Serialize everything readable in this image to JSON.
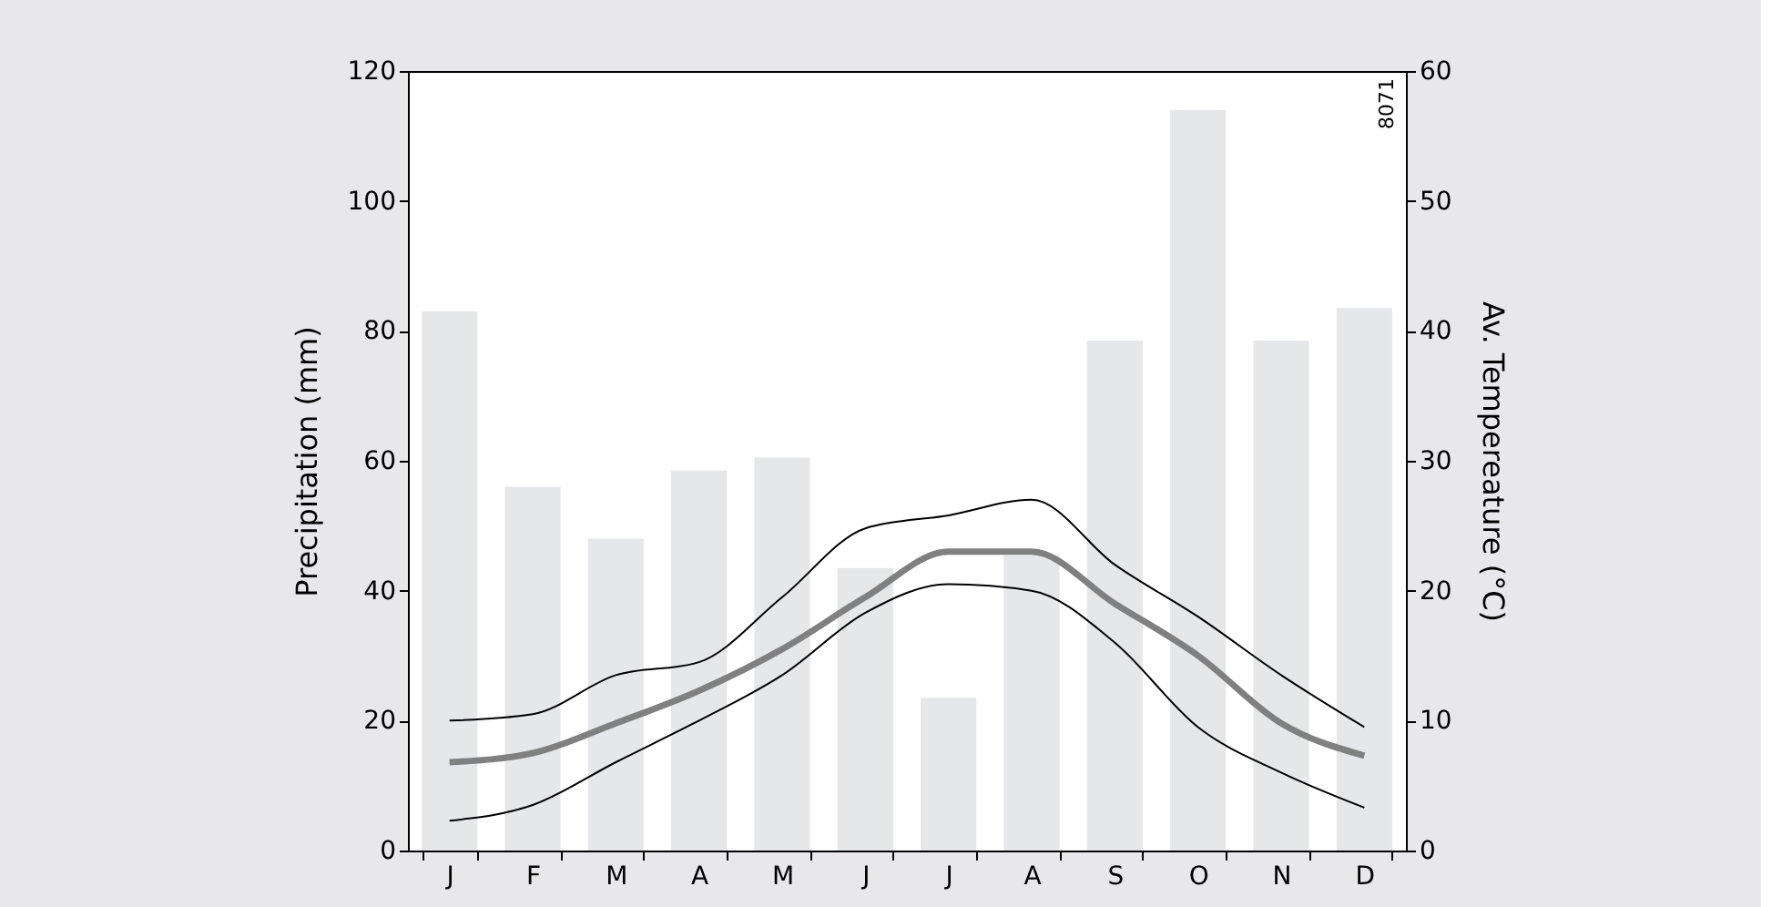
{
  "chart_data": {
    "type": "bar",
    "ylabel": "Precipitation (mm)",
    "y2label": "Av. Tempereature (°C)",
    "categories": [
      "J",
      "F",
      "M",
      "A",
      "M",
      "J",
      "J",
      "A",
      "S",
      "O",
      "N",
      "D"
    ],
    "series": [
      {
        "color": "#e6e7e9",
        "values": [
          83,
          56,
          48,
          58.5,
          60.5,
          43.5,
          23.5,
          45.5,
          78.5,
          114,
          78.5,
          83.5
        ]
      },
      {
        "type": "line",
        "axis": "y2",
        "color": "#808080",
        "values": [
          6.8,
          7.5,
          9.8,
          12.3,
          15.5,
          19.5,
          23,
          23,
          19,
          15,
          9.8,
          7.3
        ]
      },
      {
        "type": "line",
        "axis": "y2",
        "color": "#000000",
        "values": [
          10,
          10.5,
          13.5,
          14.5,
          19.5,
          24.8,
          25.8,
          27,
          22,
          18,
          13.5,
          9.5
        ]
      },
      {
        "type": "line",
        "axis": "y2",
        "color": "#000000",
        "values": [
          2.3,
          3.5,
          6.8,
          10,
          13.5,
          18.3,
          20.5,
          20,
          16,
          9.5,
          6,
          3.3
        ]
      }
    ],
    "ylim": [
      0,
      120
    ],
    "yticks": [
      0,
      20,
      40,
      60,
      80,
      100,
      120
    ],
    "y2lim": [
      0,
      60
    ],
    "y2ticks": [
      0,
      10,
      20,
      30,
      40,
      50,
      60
    ],
    "annotations": [
      "8071"
    ]
  }
}
